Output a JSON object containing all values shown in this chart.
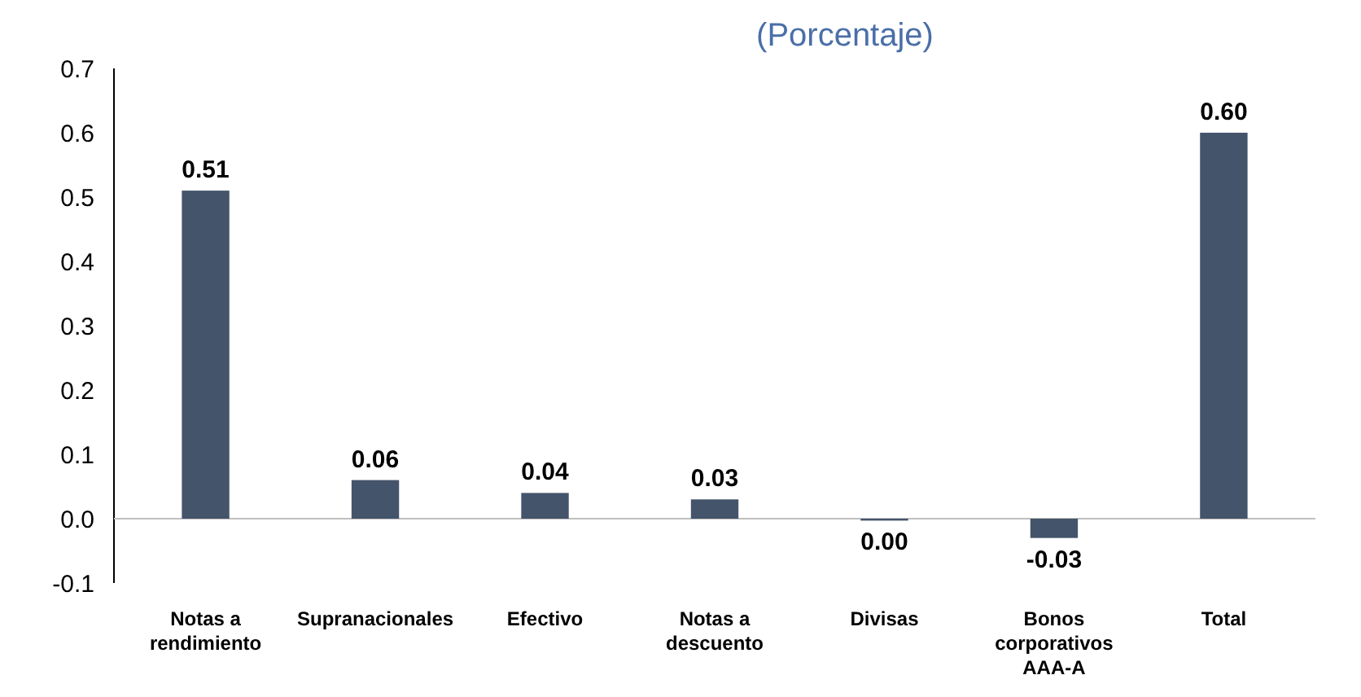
{
  "chart_data": {
    "type": "bar",
    "title": "(Porcentaje)",
    "categories": [
      "Notas a rendimiento",
      "Supranacionales",
      "Efectivo",
      "Notas a descuento",
      "Divisas",
      "Bonos corporativos AAA-A",
      "Total"
    ],
    "values": [
      0.51,
      0.06,
      0.04,
      0.03,
      -0.003,
      -0.03,
      0.6
    ],
    "value_labels": [
      "0.51",
      "0.06",
      "0.04",
      "0.03",
      "0.00",
      "-0.03",
      "0.60"
    ],
    "color": "#44546a",
    "ylim": [
      -0.1,
      0.7
    ],
    "yticks": [
      -0.1,
      {
        "value": 0,
        "label": "0.0"
      },
      0.1,
      0.2,
      0.3,
      0.4,
      0.5,
      0.6,
      0.7
    ]
  }
}
